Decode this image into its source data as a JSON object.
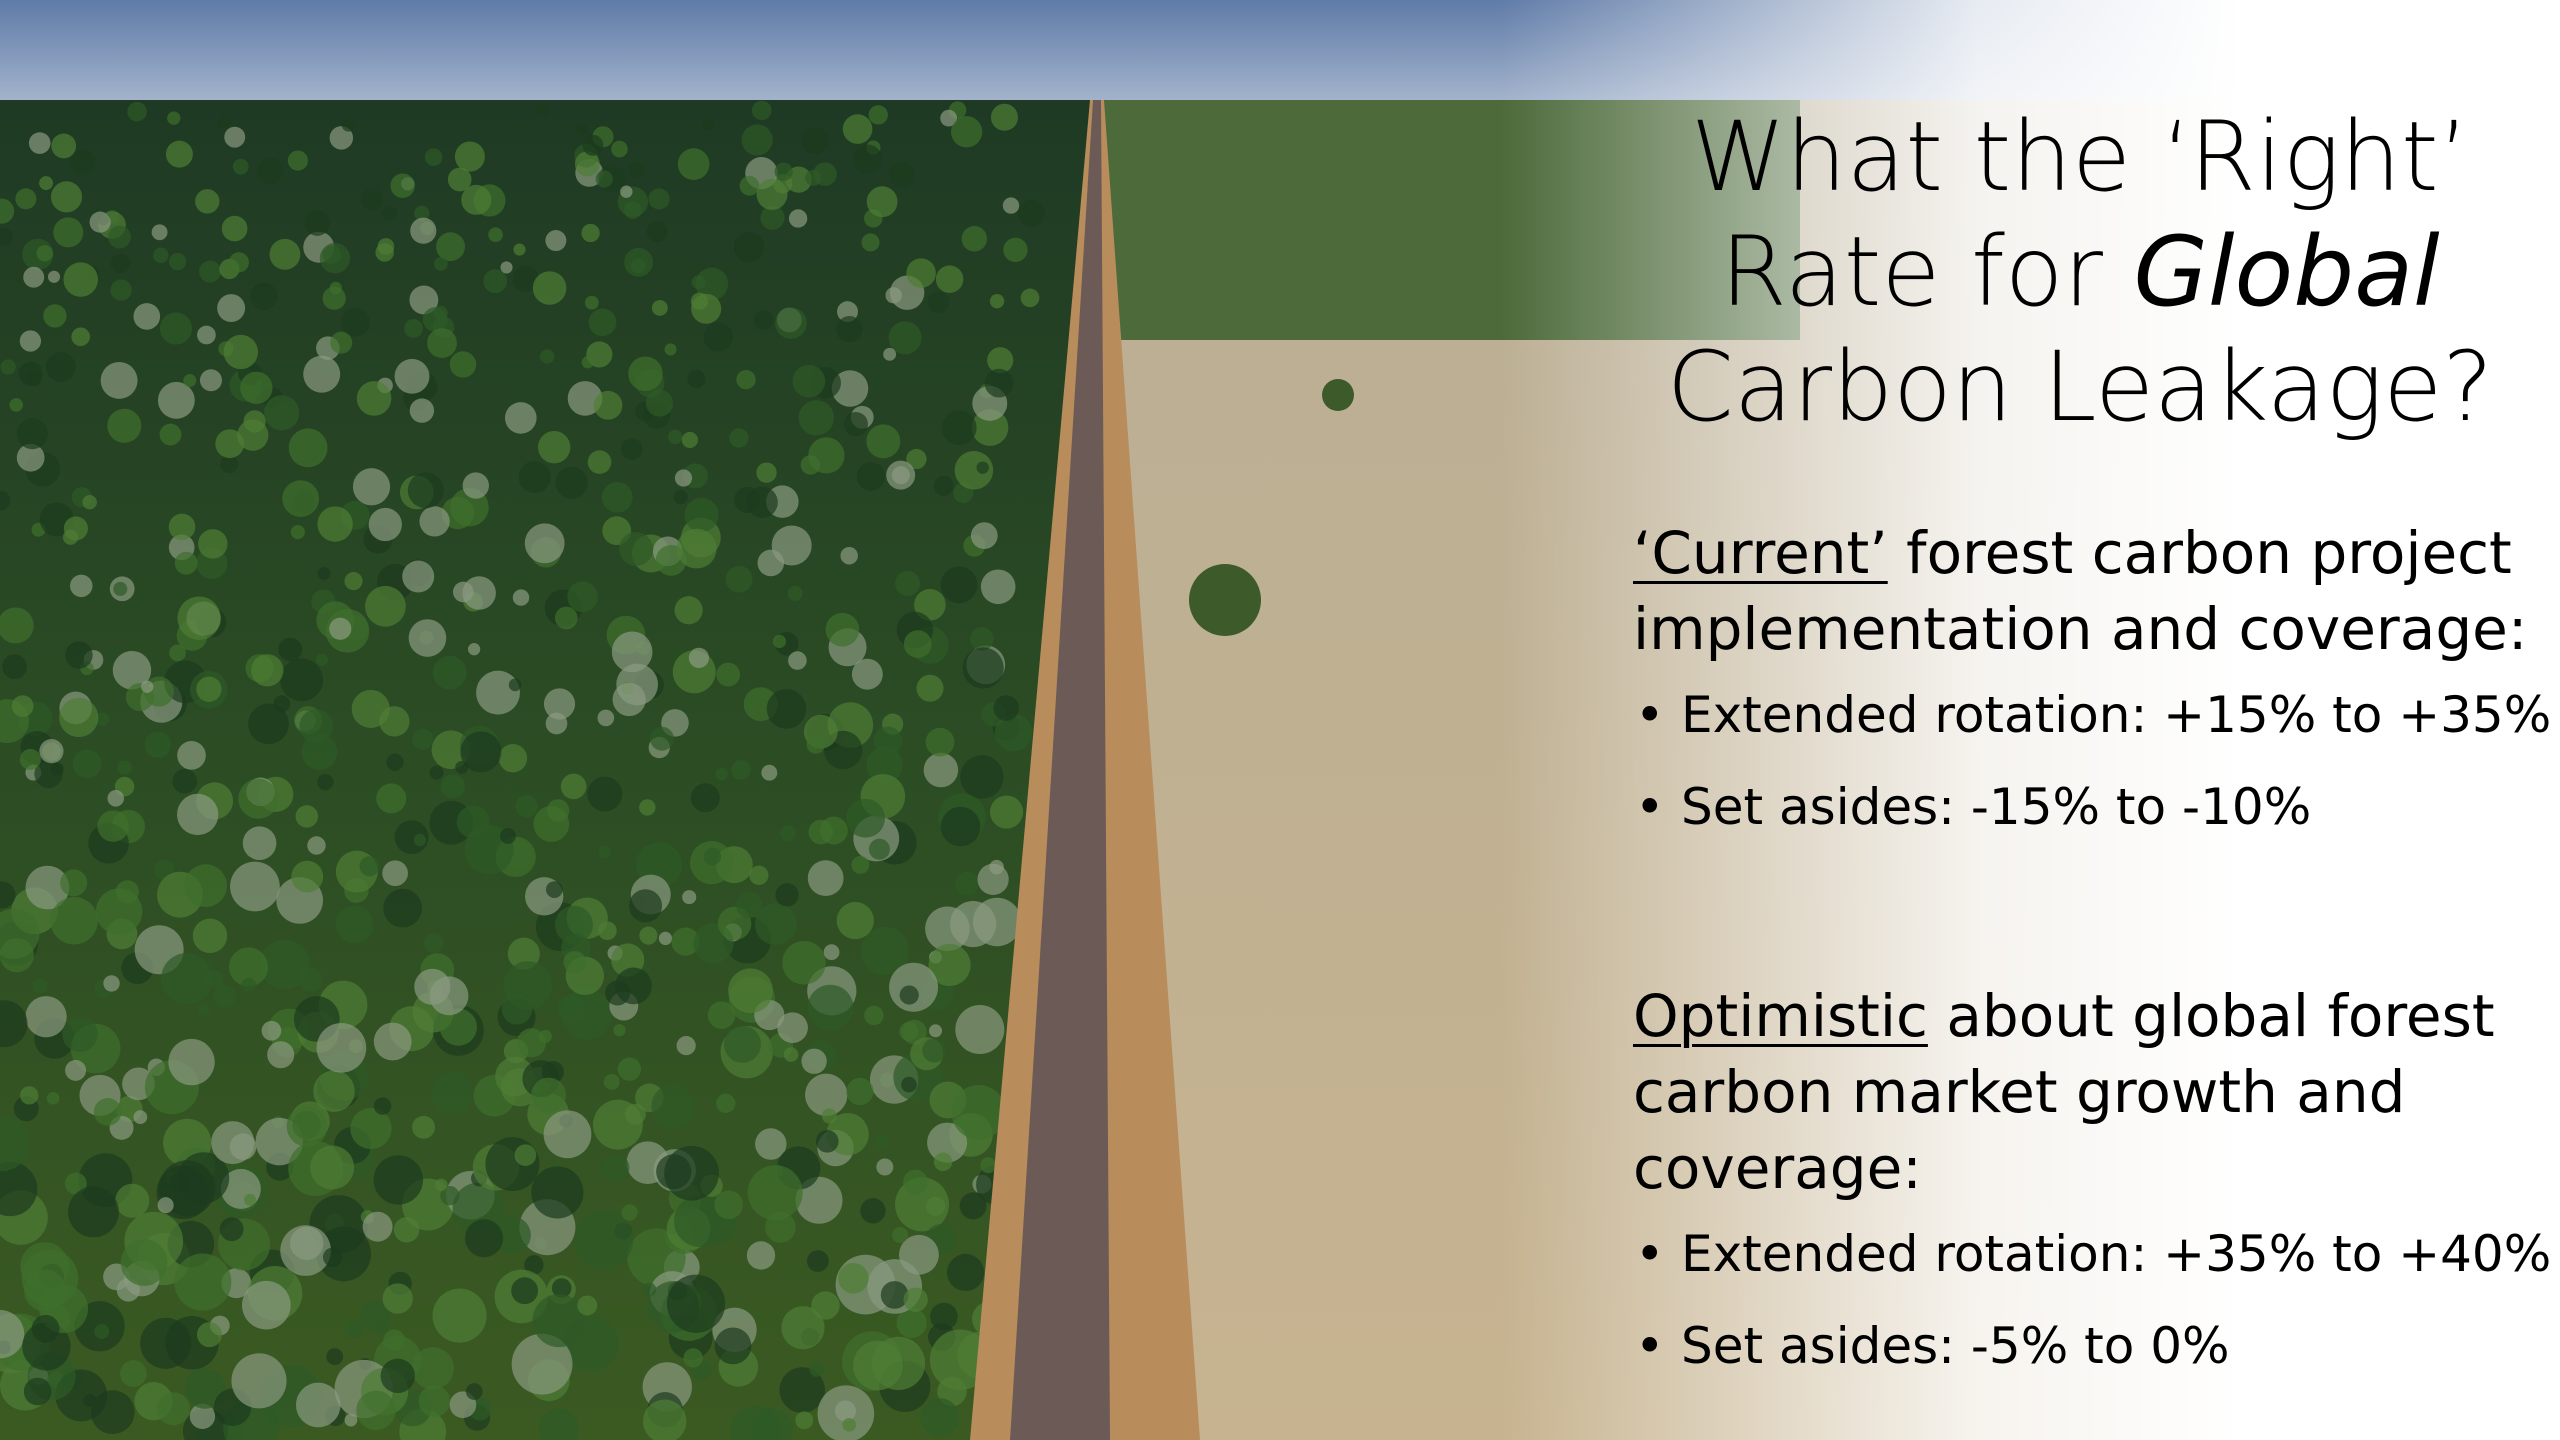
{
  "title": {
    "line1": "What the ‘Right’",
    "line2": "Rate for",
    "line2_italic": "Global",
    "line3": "Carbon Leakage?"
  },
  "sections": [
    {
      "heading_underlined": "‘Current’",
      "heading_rest": "forest carbon project implementation and coverage:",
      "bullets": [
        "Extended rotation: +15% to +35%",
        "Set asides: -15% to -10%"
      ]
    },
    {
      "heading_underlined": "Optimistic",
      "heading_rest": "about global forest carbon market growth and coverage:",
      "bullets": [
        "Extended rotation: +35% to +40%",
        "Set asides: -5% to 0%"
      ]
    }
  ]
}
